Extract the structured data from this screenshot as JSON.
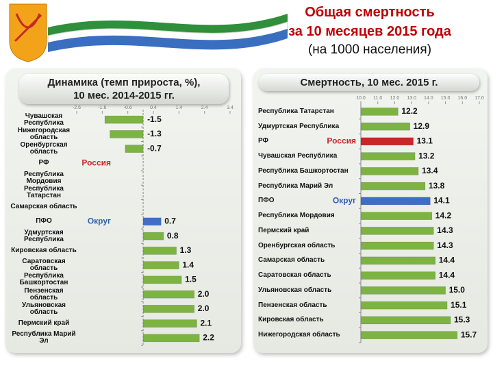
{
  "header": {
    "title": [
      "Общая смертность",
      "за 10 месяцев 2015 года"
    ],
    "subtitle": "(на 1000 населения)"
  },
  "chart_data": [
    {
      "type": "hbar",
      "title": [
        "Динамика (темп прироста, %),",
        "10 мес. 2014-2015 гг."
      ],
      "categories": [
        "Чувашская Республика",
        "Нижегородская область",
        "Оренбургская область",
        "РФ",
        "Республика Мордовия",
        "Республика Татарстан",
        "Самарская область",
        "ПФО",
        "Удмуртская Республика",
        "Кировская область",
        "Саратовская область",
        "Республика Башкортостан",
        "Пензенская область",
        "Ульяновская область",
        "Пермский край",
        "Республика Марий Эл"
      ],
      "values": [
        -1.5,
        -1.3,
        -0.7,
        0,
        0,
        0,
        0,
        0.7,
        0.8,
        1.3,
        1.4,
        1.5,
        2.0,
        2.0,
        2.1,
        2.2
      ],
      "value_labels": [
        "-1.5",
        "-1.3",
        "-0.7",
        null,
        null,
        null,
        null,
        "0.7",
        "0.8",
        "1.3",
        "1.4",
        "1.5",
        "2.0",
        "2.0",
        "2.1",
        "2.2"
      ],
      "colors": [
        "#7cb342",
        "#7cb342",
        "#7cb342",
        "#c62828",
        "#7cb342",
        "#7cb342",
        "#7cb342",
        "#3f6fc4",
        "#7cb342",
        "#7cb342",
        "#7cb342",
        "#7cb342",
        "#7cb342",
        "#7cb342",
        "#7cb342",
        "#7cb342"
      ],
      "xlim": [
        -2.6,
        3.4
      ],
      "xticks": [
        -2.6,
        -1.6,
        -0.6,
        0.4,
        1.4,
        2.4,
        3.4
      ],
      "annotations": [
        {
          "text": "Россия",
          "category": "РФ",
          "color": "#c62828"
        },
        {
          "text": "Округ",
          "category": "ПФО",
          "color": "#2f5fb4"
        }
      ]
    },
    {
      "type": "hbar",
      "title": [
        "Смертность, 10 мес. 2015 г."
      ],
      "categories": [
        "Республика Татарстан",
        "Удмуртская Республика",
        "РФ",
        "Чувашская Республика",
        "Республика Башкортостан",
        "Республика Марий Эл",
        "ПФО",
        "Республика Мордовия",
        "Пермский край",
        "Оренбургская область",
        "Самарская область",
        "Саратовская область",
        "Ульяновская область",
        "Пензенская область",
        "Кировская область",
        "Нижегородская область"
      ],
      "values": [
        12.2,
        12.9,
        13.1,
        13.2,
        13.4,
        13.8,
        14.1,
        14.2,
        14.3,
        14.3,
        14.4,
        14.4,
        15.0,
        15.1,
        15.3,
        15.7
      ],
      "value_labels": [
        "12.2",
        "12.9",
        "13.1",
        "13.2",
        "13.4",
        "13.8",
        "14.1",
        "14.2",
        "14.3",
        "14.3",
        "14.4",
        "14.4",
        "15.0",
        "15.1",
        "15.3",
        "15.7"
      ],
      "colors": [
        "#7cb342",
        "#7cb342",
        "#c62828",
        "#7cb342",
        "#7cb342",
        "#7cb342",
        "#3f6fc4",
        "#7cb342",
        "#7cb342",
        "#7cb342",
        "#7cb342",
        "#7cb342",
        "#7cb342",
        "#7cb342",
        "#7cb342",
        "#7cb342"
      ],
      "xlim": [
        10,
        17
      ],
      "xticks": [
        {
          "value": 10,
          "label": "10.0"
        },
        {
          "value": 11,
          "label": "11.0"
        },
        {
          "value": 12,
          "label": "12.0"
        },
        {
          "value": 13,
          "label": "13.0"
        },
        {
          "value": 14,
          "label": "14.0"
        },
        {
          "value": 15,
          "label": "15.0"
        },
        {
          "value": 16,
          "label": "16.0"
        },
        {
          "value": 17,
          "label": "17.0"
        }
      ],
      "annotations": [
        {
          "text": "Россия",
          "category": "РФ",
          "color": "#c62828"
        },
        {
          "text": "Округ",
          "category": "ПФО",
          "color": "#2f5fb4"
        }
      ]
    }
  ]
}
